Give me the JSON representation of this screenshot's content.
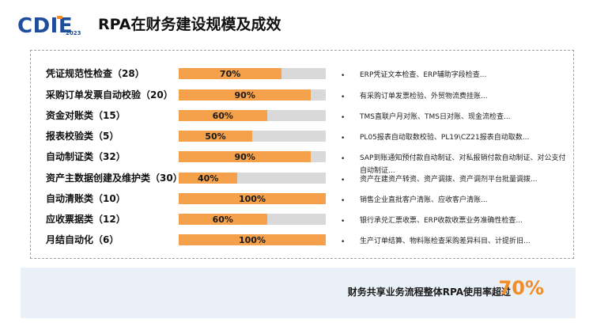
{
  "header": {
    "logo_text": "CDIE",
    "logo_year": "2023",
    "title": "RPA在财务建设规模及成效"
  },
  "chart_data": {
    "type": "bar",
    "orientation": "horizontal",
    "categories": [
      "凭证规范性检查（28）",
      "采购订单发票自动校验（20）",
      "资金对账类（15）",
      "报表校验类（5）",
      "自动制证类（32）",
      "资产主数据创建及维护类（30）",
      "自动清账类（10）",
      "应收票据类（12）",
      "月结自动化（6）"
    ],
    "values": [
      70,
      90,
      60,
      50,
      90,
      40,
      100,
      60,
      100
    ],
    "value_labels": [
      "70%",
      "90%",
      "60%",
      "50%",
      "90%",
      "40%",
      "100%",
      "60%",
      "100%"
    ],
    "xlim": [
      0,
      100
    ],
    "colors": {
      "fill": "#f5a04b",
      "track": "#d9d9d9"
    },
    "descriptions": [
      "ERP凭证文本检查、ERP辅助字段检查...",
      "有采购订单发票检验、外贸物流费挂账...",
      "TMS直联户月对账、TMS日对账、现金流检查...",
      "PL05报表自动取数校验、PL19\\CZ21报表自动取数...",
      "SAP到账通知预付款自动制证、对私报销付款自动制证、对公支付自动制证...",
      "资产在建资产转资、资产调拨、资产调剂平台批量调拨...",
      "销售企业直批客户清账、应收客户清账...",
      "银行承兑汇票收票、ERP收款收票业务准确性检查...",
      "生产订单结算、物料账检查采购差异科目、计提折旧..."
    ]
  },
  "footer": {
    "text": "财务共享业务流程整体RPA使用率超过",
    "value": "70%"
  },
  "colors": {
    "accent": "#f28c28",
    "logo": "#1e4d9b",
    "footer_bg": "#eaf0f8"
  }
}
